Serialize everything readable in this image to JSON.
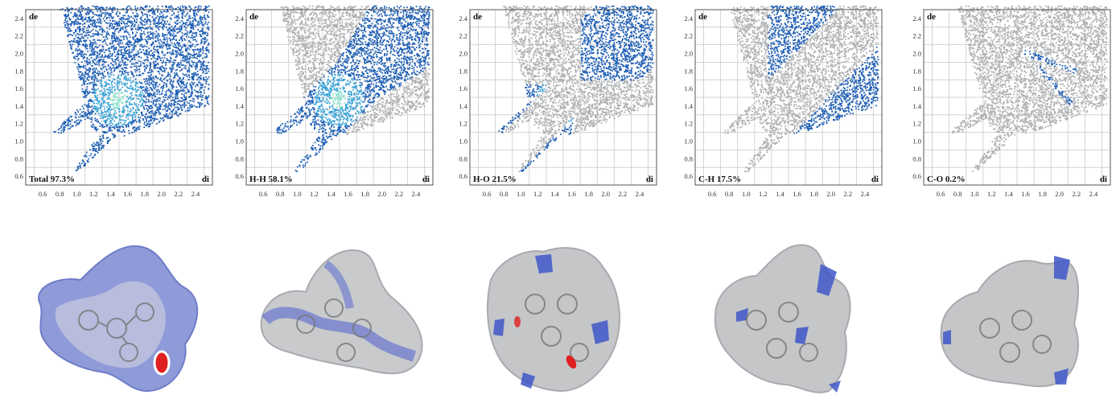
{
  "colors": {
    "contact": "#1f5fb5",
    "contact_light": "#3aa3d6",
    "contact_hot": "#7fe0c8",
    "background": "#aeb0b2",
    "grid": "#c9c9c9",
    "frame": "#555555",
    "surface_gray": "#c4c6c8",
    "surface_blue": "#3f57c8",
    "surface_red": "#e02020"
  },
  "chart_data": [
    {
      "type": "scatter",
      "title": "Total 97.3%",
      "xlabel": "di",
      "ylabel": "de",
      "xlim": [
        0.4,
        2.6
      ],
      "ylim": [
        0.5,
        2.5
      ],
      "x_ticks": [
        "0.6",
        "0.8",
        "1.0",
        "1.2",
        "1.4",
        "1.6",
        "1.8",
        "2.0",
        "2.2",
        "2.4"
      ],
      "y_ticks": [
        "0.6",
        "0.8",
        "1.0",
        "1.2",
        "1.4",
        "1.6",
        "1.8",
        "2.0",
        "2.2",
        "2.4"
      ],
      "highlight": "full",
      "series": [
        {
          "name": "Total",
          "percent": 97.3
        }
      ]
    },
    {
      "type": "scatter",
      "title": "H-H 58.1%",
      "xlabel": "di",
      "ylabel": "de",
      "xlim": [
        0.4,
        2.6
      ],
      "ylim": [
        0.5,
        2.5
      ],
      "x_ticks": [
        "0.6",
        "0.8",
        "1.0",
        "1.2",
        "1.4",
        "1.6",
        "1.8",
        "2.0",
        "2.2",
        "2.4"
      ],
      "y_ticks": [
        "0.6",
        "0.8",
        "1.0",
        "1.2",
        "1.4",
        "1.6",
        "1.8",
        "2.0",
        "2.2",
        "2.4"
      ],
      "highlight": "hh",
      "series": [
        {
          "name": "H-H",
          "percent": 58.1
        }
      ]
    },
    {
      "type": "scatter",
      "title": "H-O 21.5%",
      "xlabel": "di",
      "ylabel": "de",
      "xlim": [
        0.4,
        2.6
      ],
      "ylim": [
        0.5,
        2.5
      ],
      "x_ticks": [
        "0.6",
        "0.8",
        "1.0",
        "1.2",
        "1.4",
        "1.6",
        "1.8",
        "2.0",
        "2.2",
        "2.4"
      ],
      "y_ticks": [
        "0.6",
        "0.8",
        "1.0",
        "1.2",
        "1.4",
        "1.6",
        "1.8",
        "2.0",
        "2.2",
        "2.4"
      ],
      "highlight": "ho",
      "series": [
        {
          "name": "H-O",
          "percent": 21.5
        }
      ]
    },
    {
      "type": "scatter",
      "title": "C-H 17.5%",
      "xlabel": "di",
      "ylabel": "de",
      "xlim": [
        0.4,
        2.6
      ],
      "ylim": [
        0.5,
        2.5
      ],
      "x_ticks": [
        "0.6",
        "0.8",
        "1.0",
        "1.2",
        "1.4",
        "1.6",
        "1.8",
        "2.0",
        "2.2",
        "2.4"
      ],
      "y_ticks": [
        "0.6",
        "0.8",
        "1.0",
        "1.2",
        "1.4",
        "1.6",
        "1.8",
        "2.0",
        "2.2",
        "2.4"
      ],
      "highlight": "ch",
      "series": [
        {
          "name": "C-H",
          "percent": 17.5
        }
      ]
    },
    {
      "type": "scatter",
      "title": "C-O 0.2%",
      "xlabel": "di",
      "ylabel": "de",
      "xlim": [
        0.4,
        2.6
      ],
      "ylim": [
        0.5,
        2.5
      ],
      "x_ticks": [
        "0.6",
        "0.8",
        "1.0",
        "1.2",
        "1.4",
        "1.6",
        "1.8",
        "2.0",
        "2.2",
        "2.4"
      ],
      "y_ticks": [
        "0.6",
        "0.8",
        "1.0",
        "1.2",
        "1.4",
        "1.6",
        "1.8",
        "2.0",
        "2.2",
        "2.4"
      ],
      "highlight": "co",
      "series": [
        {
          "name": "C-O",
          "percent": 0.2
        }
      ]
    }
  ]
}
